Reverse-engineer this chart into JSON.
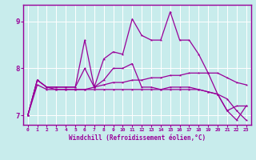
{
  "xlabel": "Windchill (Refroidissement éolien,°C)",
  "background_color": "#c8ecec",
  "line_color": "#990099",
  "grid_color": "#aad4d4",
  "xmin": 0,
  "xmax": 23,
  "ymin": 6.8,
  "ymax": 9.35,
  "yticks": [
    7,
    8,
    9
  ],
  "xticks": [
    0,
    1,
    2,
    3,
    4,
    5,
    6,
    7,
    8,
    9,
    10,
    11,
    12,
    13,
    14,
    15,
    16,
    17,
    18,
    19,
    20,
    21,
    22,
    23
  ],
  "series": [
    [
      7.0,
      7.75,
      7.6,
      7.6,
      7.6,
      7.6,
      8.6,
      7.6,
      8.2,
      8.35,
      8.3,
      9.05,
      8.7,
      8.6,
      8.6,
      9.2,
      8.6,
      8.6,
      8.3,
      7.9,
      7.45,
      7.1,
      7.2,
      7.2
    ],
    [
      7.0,
      7.75,
      7.6,
      7.6,
      7.6,
      7.6,
      8.0,
      7.6,
      7.75,
      8.0,
      8.0,
      8.1,
      7.6,
      7.6,
      7.55,
      7.6,
      7.6,
      7.6,
      7.55,
      7.5,
      7.45,
      7.1,
      6.9,
      7.2
    ],
    [
      7.0,
      7.75,
      7.6,
      7.55,
      7.55,
      7.55,
      7.55,
      7.55,
      7.55,
      7.55,
      7.55,
      7.55,
      7.55,
      7.55,
      7.55,
      7.55,
      7.55,
      7.55,
      7.55,
      7.5,
      7.45,
      7.35,
      7.1,
      6.9
    ],
    [
      7.0,
      7.65,
      7.55,
      7.55,
      7.55,
      7.55,
      7.55,
      7.6,
      7.65,
      7.7,
      7.7,
      7.75,
      7.75,
      7.8,
      7.8,
      7.85,
      7.85,
      7.9,
      7.9,
      7.9,
      7.9,
      7.8,
      7.7,
      7.65
    ]
  ]
}
